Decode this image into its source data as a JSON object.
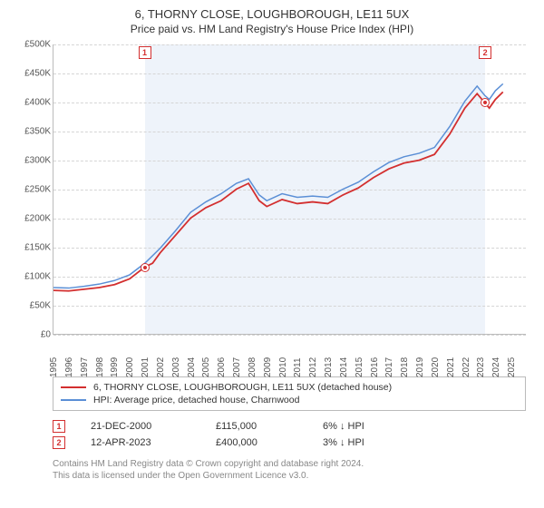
{
  "title": "6, THORNY CLOSE, LOUGHBOROUGH, LE11 5UX",
  "subtitle": "Price paid vs. HM Land Registry's House Price Index (HPI)",
  "chart": {
    "type": "line",
    "x_range": [
      1995,
      2026
    ],
    "y_range": [
      0,
      500000
    ],
    "y_ticks": [
      0,
      50000,
      100000,
      150000,
      200000,
      250000,
      300000,
      350000,
      400000,
      450000,
      500000
    ],
    "y_tick_labels": [
      "£0",
      "£50K",
      "£100K",
      "£150K",
      "£200K",
      "£250K",
      "£300K",
      "£350K",
      "£400K",
      "£450K",
      "£500K"
    ],
    "x_ticks": [
      1995,
      1996,
      1997,
      1998,
      1999,
      2000,
      2001,
      2002,
      2003,
      2004,
      2005,
      2006,
      2007,
      2008,
      2009,
      2010,
      2011,
      2012,
      2013,
      2014,
      2015,
      2016,
      2017,
      2018,
      2019,
      2020,
      2021,
      2022,
      2023,
      2024,
      2025
    ],
    "band_color": "#eef3fa",
    "grid_color": "#d5d5d5",
    "background_color": "#ffffff",
    "axis_color": "#bbbbbb",
    "sale_band": [
      2000.97,
      2023.28
    ],
    "series": [
      {
        "name": "property",
        "label": "6, THORNY CLOSE, LOUGHBOROUGH, LE11 5UX (detached house)",
        "color": "#d32f2f",
        "width": 1.8,
        "points": [
          [
            1995,
            75000
          ],
          [
            1996,
            74000
          ],
          [
            1997,
            77000
          ],
          [
            1998,
            80000
          ],
          [
            1999,
            85000
          ],
          [
            2000,
            95000
          ],
          [
            2000.97,
            115000
          ],
          [
            2001.5,
            122000
          ],
          [
            2002,
            140000
          ],
          [
            2003,
            170000
          ],
          [
            2004,
            200000
          ],
          [
            2005,
            218000
          ],
          [
            2006,
            230000
          ],
          [
            2007,
            250000
          ],
          [
            2007.8,
            260000
          ],
          [
            2008.5,
            230000
          ],
          [
            2009,
            220000
          ],
          [
            2010,
            232000
          ],
          [
            2011,
            225000
          ],
          [
            2012,
            228000
          ],
          [
            2013,
            225000
          ],
          [
            2014,
            240000
          ],
          [
            2015,
            252000
          ],
          [
            2016,
            270000
          ],
          [
            2017,
            285000
          ],
          [
            2018,
            295000
          ],
          [
            2019,
            300000
          ],
          [
            2020,
            310000
          ],
          [
            2021,
            345000
          ],
          [
            2022,
            390000
          ],
          [
            2022.8,
            415000
          ],
          [
            2023.28,
            400000
          ],
          [
            2023.6,
            390000
          ],
          [
            2024,
            405000
          ],
          [
            2024.5,
            418000
          ]
        ]
      },
      {
        "name": "hpi",
        "label": "HPI: Average price, detached house, Charnwood",
        "color": "#5b8fd6",
        "width": 1.5,
        "points": [
          [
            1995,
            80000
          ],
          [
            1996,
            79000
          ],
          [
            1997,
            82000
          ],
          [
            1998,
            86000
          ],
          [
            1999,
            92000
          ],
          [
            2000,
            102000
          ],
          [
            2001,
            122000
          ],
          [
            2002,
            148000
          ],
          [
            2003,
            178000
          ],
          [
            2004,
            210000
          ],
          [
            2005,
            228000
          ],
          [
            2006,
            242000
          ],
          [
            2007,
            260000
          ],
          [
            2007.8,
            268000
          ],
          [
            2008.5,
            240000
          ],
          [
            2009,
            230000
          ],
          [
            2010,
            242000
          ],
          [
            2011,
            236000
          ],
          [
            2012,
            238000
          ],
          [
            2013,
            236000
          ],
          [
            2014,
            250000
          ],
          [
            2015,
            262000
          ],
          [
            2016,
            280000
          ],
          [
            2017,
            296000
          ],
          [
            2018,
            306000
          ],
          [
            2019,
            312000
          ],
          [
            2020,
            322000
          ],
          [
            2021,
            358000
          ],
          [
            2022,
            402000
          ],
          [
            2022.8,
            428000
          ],
          [
            2023.3,
            412000
          ],
          [
            2023.6,
            405000
          ],
          [
            2024,
            420000
          ],
          [
            2024.5,
            432000
          ]
        ]
      }
    ],
    "markers": [
      {
        "n": "1",
        "x": 2000.97,
        "y": 115000,
        "label_top": true
      },
      {
        "n": "2",
        "x": 2023.28,
        "y": 400000,
        "label_top": true
      }
    ]
  },
  "legend": {
    "items": [
      {
        "color": "#d32f2f",
        "text": "6, THORNY CLOSE, LOUGHBOROUGH, LE11 5UX (detached house)"
      },
      {
        "color": "#5b8fd6",
        "text": "HPI: Average price, detached house, Charnwood"
      }
    ]
  },
  "sales": [
    {
      "n": "1",
      "date": "21-DEC-2000",
      "price": "£115,000",
      "delta": "6%",
      "arrow": "↓",
      "vs": "HPI"
    },
    {
      "n": "2",
      "date": "12-APR-2023",
      "price": "£400,000",
      "delta": "3%",
      "arrow": "↓",
      "vs": "HPI"
    }
  ],
  "footer": {
    "line1": "Contains HM Land Registry data © Crown copyright and database right 2024.",
    "line2": "This data is licensed under the Open Government Licence v3.0."
  }
}
